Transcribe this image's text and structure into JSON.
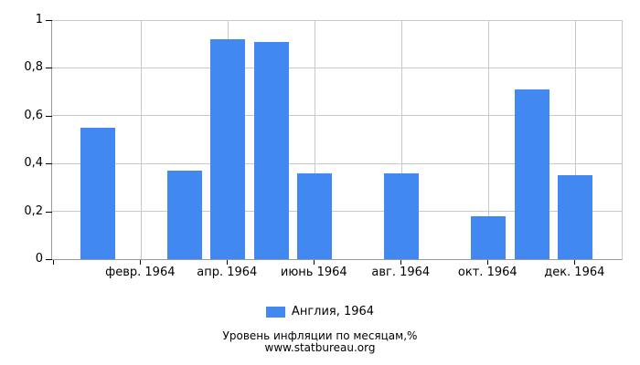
{
  "legend": {
    "label": "Англия, 1964"
  },
  "footer": {
    "line1": "Уровень инфляции по месяцам,%",
    "line2": "www.statbureau.org"
  },
  "chart_data": {
    "type": "bar",
    "title": "",
    "subtitle": "Уровень инфляции по месяцам,%",
    "source": "www.statbureau.org",
    "series_name": "Англия, 1964",
    "months_count": 12,
    "values": [
      0.55,
      0,
      0.37,
      0.92,
      0.91,
      0.36,
      0,
      0.36,
      0,
      0.18,
      0.71,
      0.35
    ],
    "x_ticks": [
      {
        "month": 2,
        "label": "февр. 1964"
      },
      {
        "month": 4,
        "label": "апр. 1964"
      },
      {
        "month": 6,
        "label": "июнь 1964"
      },
      {
        "month": 8,
        "label": "авг. 1964"
      },
      {
        "month": 10,
        "label": "окт. 1964"
      },
      {
        "month": 12,
        "label": "дек. 1964"
      }
    ],
    "y_ticks": [
      {
        "v": 0,
        "label": "0"
      },
      {
        "v": 0.2,
        "label": "0,2"
      },
      {
        "v": 0.4,
        "label": "0,4"
      },
      {
        "v": 0.6,
        "label": "0,6"
      },
      {
        "v": 0.8,
        "label": "0,8"
      },
      {
        "v": 1,
        "label": "1"
      }
    ],
    "ylim": [
      0,
      1
    ],
    "grid": true,
    "legend_position": "bottom",
    "colors": {
      "bar": "#4189F0",
      "grid": "#C9C9C9",
      "axis": "#9B9B9B",
      "tick": "#000000",
      "text": "#000000"
    }
  }
}
